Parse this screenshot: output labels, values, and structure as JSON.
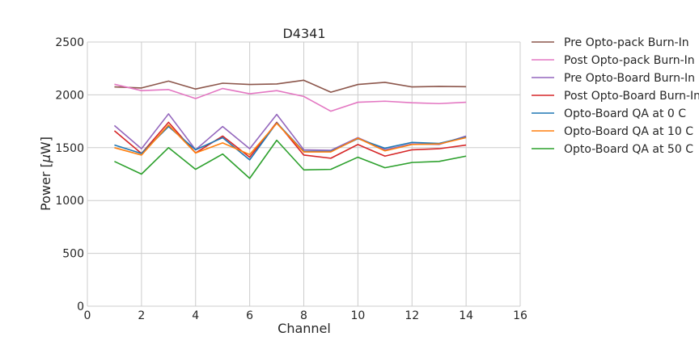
{
  "chart_data": {
    "type": "line",
    "title": "D4341",
    "xlabel": "Channel",
    "ylabel_prefix": "Power [",
    "ylabel_mu": "μ",
    "ylabel_suffix": "W]",
    "xlim": [
      0,
      16
    ],
    "ylim": [
      0,
      2500
    ],
    "xticks": [
      0,
      2,
      4,
      6,
      8,
      10,
      12,
      14,
      16
    ],
    "yticks": [
      0,
      500,
      1000,
      1500,
      2000,
      2500
    ],
    "grid": true,
    "legend_position": "outside-right",
    "x": [
      1,
      2,
      3,
      4,
      5,
      6,
      7,
      8,
      9,
      10,
      11,
      12,
      13,
      14
    ],
    "series": [
      {
        "name": "Pre Opto-pack Burn-In",
        "color": "#8c564b",
        "values": [
          2075,
          2065,
          2130,
          2055,
          2110,
          2098,
          2103,
          2138,
          2025,
          2098,
          2118,
          2075,
          2080,
          2077
        ]
      },
      {
        "name": "Post Opto-pack Burn-In",
        "color": "#e377c2",
        "values": [
          2100,
          2040,
          2050,
          1965,
          2060,
          2010,
          2040,
          1985,
          1845,
          1930,
          1940,
          1925,
          1917,
          1930
        ]
      },
      {
        "name": "Pre Opto-Board Burn-In",
        "color": "#9467bd",
        "values": [
          1710,
          1490,
          1820,
          1480,
          1700,
          1490,
          1815,
          1480,
          1475,
          1595,
          1480,
          1535,
          1530,
          1610
        ]
      },
      {
        "name": "Post Opto-Board Burn-In",
        "color": "#d62728",
        "values": [
          1660,
          1445,
          1740,
          1450,
          1610,
          1410,
          1740,
          1430,
          1400,
          1530,
          1420,
          1480,
          1490,
          1525
        ]
      },
      {
        "name": "Opto-Board QA at 0 C",
        "color": "#1f77b4",
        "values": [
          1525,
          1445,
          1700,
          1480,
          1595,
          1385,
          1735,
          1465,
          1465,
          1585,
          1495,
          1550,
          1540,
          1600
        ]
      },
      {
        "name": "Opto-Board QA at 10 C",
        "color": "#ff7f0e",
        "values": [
          1500,
          1430,
          1715,
          1450,
          1545,
          1435,
          1730,
          1460,
          1460,
          1590,
          1470,
          1530,
          1535,
          1595
        ]
      },
      {
        "name": "Opto-Board QA at 50 C",
        "color": "#2ca02c",
        "values": [
          1370,
          1250,
          1500,
          1295,
          1440,
          1210,
          1570,
          1290,
          1295,
          1410,
          1310,
          1360,
          1370,
          1420
        ]
      }
    ]
  }
}
